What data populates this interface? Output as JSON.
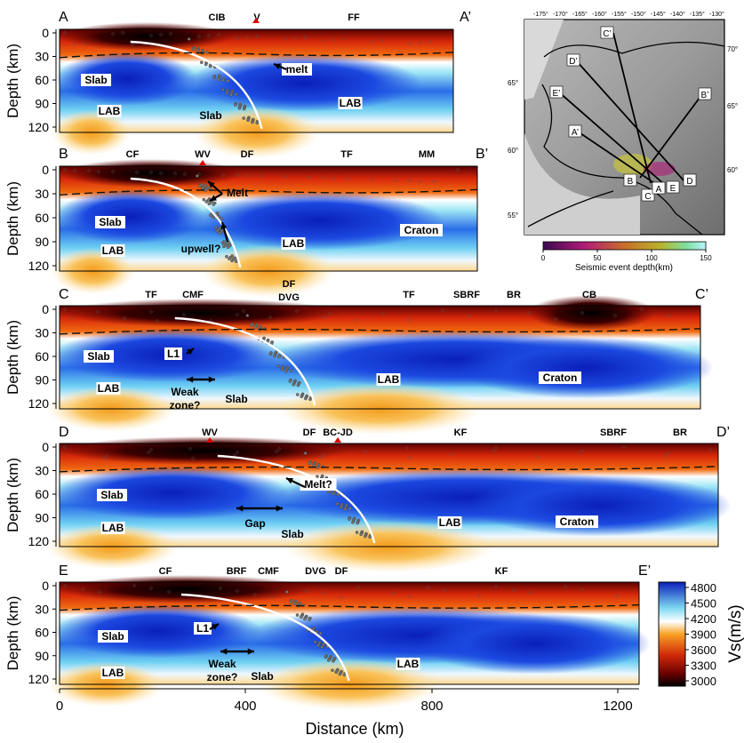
{
  "colorbar": {
    "title": "Vs(m/s)",
    "ticks": [
      "4800",
      "4500",
      "4200",
      "3900",
      "3600",
      "3300",
      "3000"
    ]
  },
  "distance_axis": {
    "label": "Distance (km)",
    "ticks": [
      "0",
      "400",
      "800",
      "1200"
    ]
  },
  "depth_label": "Depth (km)",
  "depth_ticks": [
    "0",
    "30",
    "60",
    "90",
    "120"
  ],
  "panels": [
    {
      "id": "A",
      "left_label": "A",
      "right_label": "A’",
      "features": [
        "CIB",
        "V",
        "FF"
      ],
      "annotations": [
        "melt",
        "Slab",
        "Slab",
        "LAB",
        "LAB"
      ]
    },
    {
      "id": "B",
      "left_label": "B",
      "right_label": "B’",
      "features": [
        "CF",
        "WV",
        "DF",
        "TF",
        "MM"
      ],
      "annotations": [
        "Melt",
        "Slab",
        "LAB",
        "LAB",
        "Craton",
        "upwell?"
      ]
    },
    {
      "id": "C",
      "left_label": "C",
      "right_label": "C’",
      "features": [
        "TF",
        "CMF",
        "DF",
        "DVG",
        "TF",
        "SBRF",
        "BR",
        "CB"
      ],
      "annotations": [
        "Slab",
        "L1",
        "LAB",
        "Weak",
        "zone?",
        "Slab",
        "LAB",
        "Craton"
      ]
    },
    {
      "id": "D",
      "left_label": "D",
      "right_label": "D’",
      "features": [
        "WV",
        "DF",
        "BC-JD",
        "KF",
        "SBRF",
        "BR"
      ],
      "annotations": [
        "Slab",
        "Melt?",
        "LAB",
        "Gap",
        "Slab",
        "LAB",
        "Craton"
      ]
    },
    {
      "id": "E",
      "left_label": "E",
      "right_label": "E’",
      "features": [
        "CF",
        "BRF",
        "CMF",
        "DVG",
        "DF",
        "KF"
      ],
      "annotations": [
        "Slab",
        "L1",
        "LAB",
        "Weak",
        "zone?",
        "Slab",
        "LAB"
      ]
    }
  ],
  "map": {
    "lon_labels": [
      "-175°",
      "-170°",
      "-165°",
      "-160°",
      "-155°",
      "-150°",
      "-145°",
      "-140°",
      "-135°",
      "-130°"
    ],
    "lat_labels_right": [
      "70°",
      "65°",
      "60°"
    ],
    "lat_labels_left": [
      "65°",
      "60°",
      "55°"
    ],
    "profile_labels": [
      "C’",
      "D’",
      "E’",
      "B’",
      "A’",
      "B",
      "C",
      "A",
      "E",
      "D"
    ],
    "colorbar_ticks": [
      "0",
      "50",
      "100",
      "150"
    ],
    "colorbar_title": "Seismic event depth(km)"
  }
}
